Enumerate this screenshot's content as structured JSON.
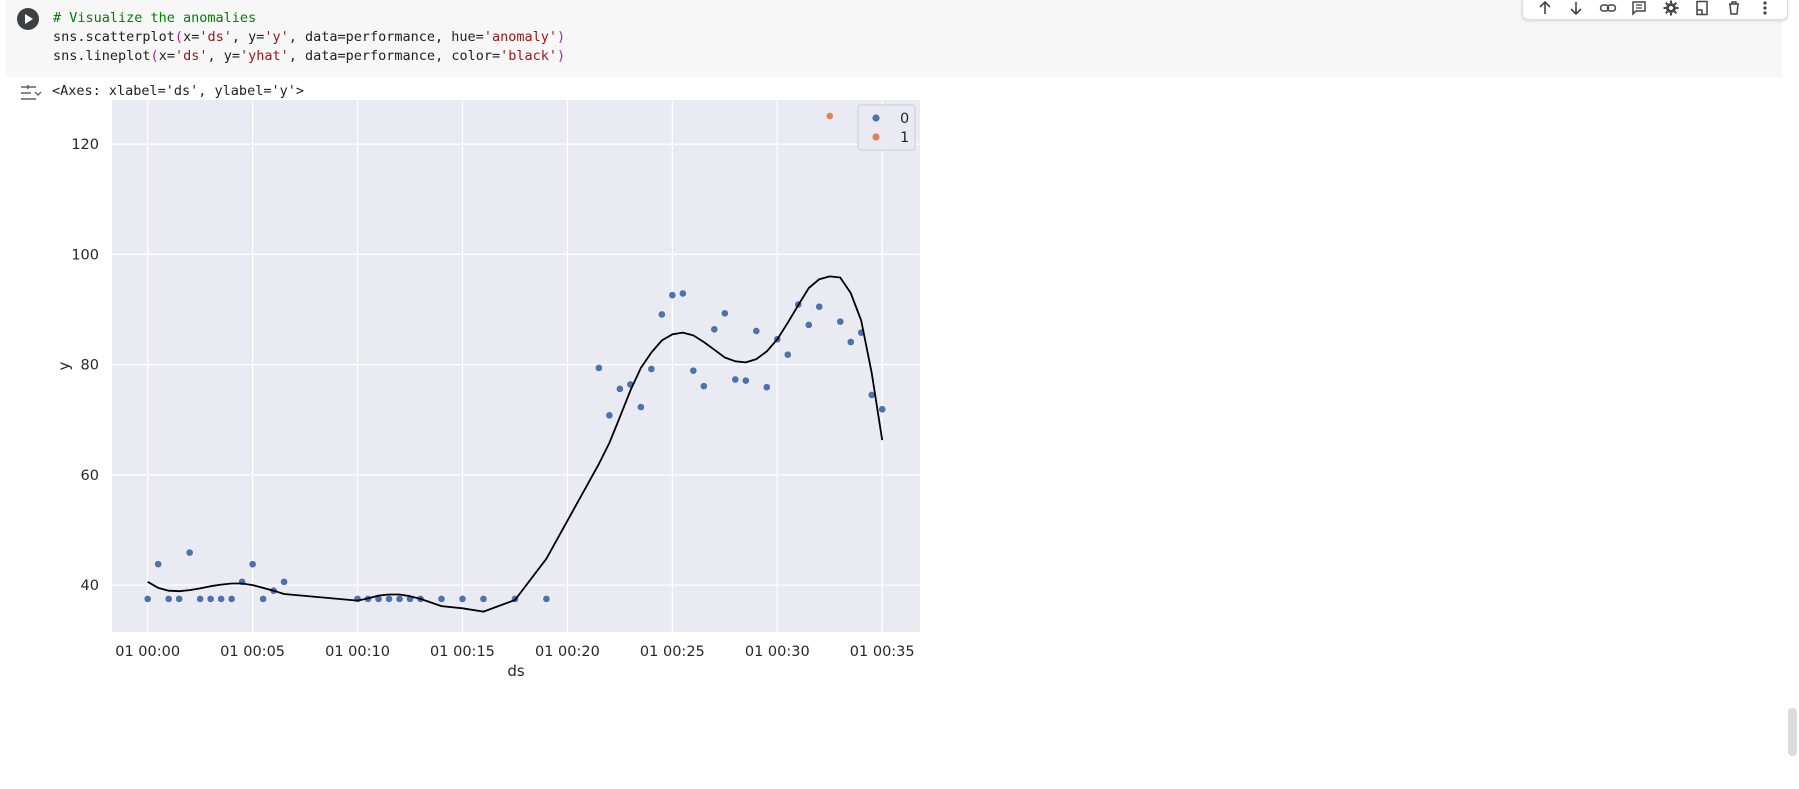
{
  "code": {
    "comment": "# Visualize the anomalies",
    "line2": {
      "fn": "sns.scatterplot",
      "open": "(",
      "a1": "x=",
      "s1": "'ds'",
      "a2": ", y=",
      "s2": "'y'",
      "a3": ", data=performance, hue=",
      "s3": "'anomaly'",
      "close": ")"
    },
    "line3": {
      "fn": "sns.lineplot",
      "open": "(",
      "a1": "x=",
      "s1": "'ds'",
      "a2": ", y=",
      "s2": "'yhat'",
      "a3": ", data=performance, color=",
      "s3": "'black'",
      "close": ")"
    }
  },
  "output": {
    "text": "<Axes: xlabel='ds', ylabel='y'>"
  },
  "toolbar": {
    "icons": [
      "arrow-up-icon",
      "arrow-down-icon",
      "link-icon",
      "comment-icon",
      "gear-icon",
      "mirror-cell-icon",
      "trash-icon",
      "more-vert-icon"
    ]
  },
  "chart_data": {
    "type": "scatter",
    "title": "",
    "xlabel": "ds",
    "ylabel": "y",
    "x_unit": "minutes after 01 00:00",
    "xlim": [
      -1.7,
      36.8
    ],
    "ylim": [
      31.5,
      128
    ],
    "x_ticks": [
      {
        "value": 0,
        "label": "01 00:00"
      },
      {
        "value": 5,
        "label": "01 00:05"
      },
      {
        "value": 10,
        "label": "01 00:10"
      },
      {
        "value": 15,
        "label": "01 00:15"
      },
      {
        "value": 20,
        "label": "01 00:20"
      },
      {
        "value": 25,
        "label": "01 00:25"
      },
      {
        "value": 30,
        "label": "01 00:30"
      },
      {
        "value": 35,
        "label": "01 00:35"
      }
    ],
    "y_ticks": [
      40,
      60,
      80,
      100,
      120
    ],
    "grid": true,
    "legend": {
      "placement": "top-right",
      "entries": [
        {
          "label": "0",
          "color": "#4c72b0"
        },
        {
          "label": "1",
          "color": "#dd8452"
        }
      ]
    },
    "series": [
      {
        "name": "0",
        "kind": "scatter",
        "color": "#4c72b0",
        "x": [
          0,
          0.5,
          1,
          1.5,
          2,
          2.5,
          3,
          3.5,
          4,
          4.5,
          5,
          5.5,
          6,
          6.5,
          10,
          10.5,
          11,
          11.5,
          12,
          12.5,
          13,
          14,
          15,
          16,
          17.5,
          19,
          21.5,
          22,
          22.5,
          23,
          23.5,
          24,
          24.5,
          25,
          25.5,
          26,
          26.5,
          27,
          27.5,
          28,
          28.5,
          29,
          29.5,
          30,
          30.5,
          31,
          31.5,
          32,
          33,
          33.5,
          34,
          34.5,
          35
        ],
        "y": [
          37.5,
          43.8,
          37.5,
          37.5,
          45.9,
          37.5,
          37.5,
          37.5,
          37.5,
          40.6,
          43.8,
          37.5,
          39.0,
          40.6,
          37.5,
          37.5,
          37.5,
          37.5,
          37.5,
          37.5,
          37.5,
          37.5,
          37.5,
          37.5,
          37.5,
          37.5,
          79.4,
          70.8,
          75.6,
          76.4,
          72.3,
          79.2,
          89.1,
          92.6,
          92.9,
          78.9,
          76.1,
          86.4,
          89.3,
          77.3,
          77.1,
          86.1,
          75.9,
          84.6,
          81.8,
          90.9,
          87.2,
          90.5,
          87.8,
          84.1,
          85.8,
          74.5,
          71.9
        ]
      },
      {
        "name": "1",
        "kind": "scatter",
        "color": "#dd8452",
        "x": [
          32.5
        ],
        "y": [
          125.1
        ]
      },
      {
        "name": "yhat",
        "kind": "line",
        "color": "#000000",
        "x": [
          0,
          0.5,
          1,
          1.5,
          2,
          2.5,
          3,
          3.5,
          4,
          4.5,
          5,
          5.5,
          6,
          6.5,
          10,
          10.5,
          11,
          11.5,
          12,
          12.5,
          13,
          14,
          15,
          16,
          17.5,
          19,
          21.5,
          22,
          22.5,
          23,
          23.5,
          24,
          24.5,
          25,
          25.5,
          26,
          26.5,
          27,
          27.5,
          28,
          28.5,
          29,
          29.5,
          30,
          30.5,
          31,
          31.5,
          32,
          32.5,
          33,
          33.5,
          34,
          34.5,
          35
        ],
        "y": [
          40.6,
          39.5,
          39.0,
          38.9,
          39.1,
          39.4,
          39.8,
          40.1,
          40.3,
          40.3,
          40.0,
          39.5,
          39.0,
          38.4,
          37.2,
          37.6,
          38.1,
          38.3,
          38.3,
          38.0,
          37.5,
          36.2,
          35.8,
          35.2,
          37.3,
          44.8,
          62.0,
          65.8,
          70.5,
          75.3,
          79.4,
          82.2,
          84.4,
          85.5,
          85.8,
          85.3,
          84.1,
          82.7,
          81.3,
          80.6,
          80.4,
          81.0,
          82.4,
          84.6,
          87.6,
          90.8,
          93.9,
          95.5,
          96.0,
          95.8,
          93.0,
          88.0,
          78.5,
          66.3
        ]
      }
    ]
  }
}
